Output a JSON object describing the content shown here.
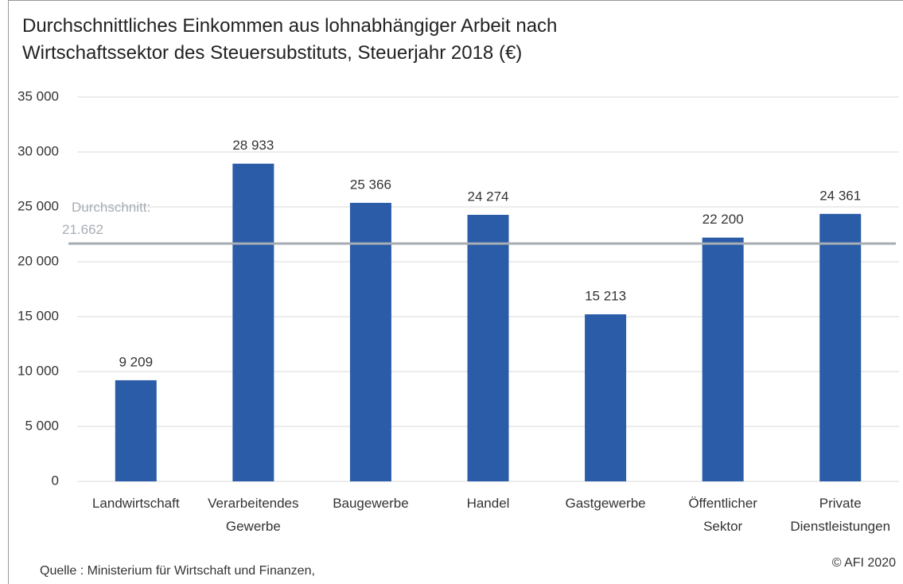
{
  "chart_data": {
    "type": "bar",
    "title": "Durchschnittliches Einkommen aus lohnabhängiger Arbeit nach Wirtschaftssektor des Steuersubstituts, Steuerjahr 2018 (€)",
    "categories": [
      "Landwirtschaft",
      "Verarbeitendes Gewerbe",
      "Baugewerbe",
      "Handel",
      "Gastgewerbe",
      "Öffentlicher Sektor",
      "Private Dienstleistungen"
    ],
    "values": [
      9209,
      28933,
      25366,
      24274,
      15213,
      22200,
      24361
    ],
    "value_labels": [
      "9 209",
      "28 933",
      "25 366",
      "24 274",
      "15 213",
      "22 200",
      "24 361"
    ],
    "color": "#2b5ca8",
    "ylim": [
      0,
      35000
    ],
    "yticks": [
      0,
      {
        "value": 5000,
        "label": "5 000"
      },
      {
        "value": 10000,
        "label": "10 000"
      },
      {
        "value": 15000,
        "label": "15 000"
      },
      {
        "value": 20000,
        "label": "20 000"
      },
      {
        "value": 25000,
        "label": "25 000"
      },
      {
        "value": 30000,
        "label": "30 000"
      },
      {
        "value": 35000,
        "label": "35 000"
      }
    ],
    "grid": true,
    "reference_line": {
      "value": 21662,
      "label": "Durchschnitt: 21.662",
      "color": "#a6adb4"
    },
    "source": "Quelle : Ministerium für Wirtschaft und Finanzen,",
    "copyright": "© AFI 2020"
  }
}
